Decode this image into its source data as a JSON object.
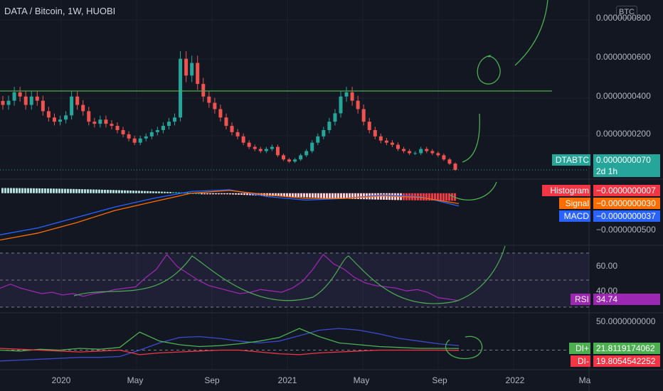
{
  "header": {
    "title": "DATA / Bitcoin, 1W, HUOBI",
    "currency_button": "BTC"
  },
  "price_axis": {
    "ticks": [
      "0.0000000800",
      "0.0000000600",
      "0.0000000400",
      "0.0000000200"
    ]
  },
  "price_label": {
    "ticker": "DTABTC",
    "value": "0.0000000070",
    "countdown": "2d 1h"
  },
  "macd_panel": {
    "histogram_label": "Histogram",
    "histogram_value": "−0.0000000007",
    "signal_label": "Signal",
    "signal_value": "−0.0000000030",
    "macd_label": "MACD",
    "macd_value": "−0.0000000037",
    "axis_tick": "−0.0000000500"
  },
  "rsi_panel": {
    "label": "RSI",
    "value": "34.74",
    "ticks": [
      "60.00",
      "40.00"
    ]
  },
  "dmi_panel": {
    "di_plus_label": "DI+",
    "di_plus_value": "21.8119174062",
    "di_minus_label": "DI-",
    "di_minus_value": "19.8054542252",
    "axis_tick": "50.0000000000"
  },
  "time_axis": {
    "ticks": [
      "2020",
      "May",
      "Sep",
      "2021",
      "May",
      "Sep",
      "2022",
      "Ma"
    ]
  },
  "colors": {
    "background": "#131722",
    "up": "#26a69a",
    "down": "#ef5350",
    "drawing": "#4caf50",
    "rsi": "#9c27b0",
    "macd": "#2962ff",
    "signal": "#ff6d00",
    "histogram": "#f23645",
    "di_plus": "#4caf50",
    "di_minus": "#f23645",
    "adx": "#3b4bd0"
  },
  "chart_data": [
    {
      "type": "candlestick",
      "title": "DATA / Bitcoin, 1W, HUOBI",
      "x_range": [
        "2019-10",
        "2021-10"
      ],
      "ylim": [
        6e-09,
        8.8e-08
      ],
      "annotation": "horizontal line ~0.0000000420",
      "series": [
        {
          "name": "close",
          "values": [
            3.8e-08,
            4e-08,
            4.4e-08,
            4.2e-08,
            3.8e-08,
            4.2e-08,
            4e-08,
            3.5e-08,
            3.2e-08,
            3e-08,
            3.1e-08,
            3.3e-08,
            4.2e-08,
            3.8e-08,
            3.5e-08,
            3e-08,
            2.9e-08,
            3.1e-08,
            2.9e-08,
            2.8e-08,
            2.6e-08,
            2.4e-08,
            2.2e-08,
            2e-08,
            2.2e-08,
            2.3e-08,
            2.5e-08,
            2.6e-08,
            2.8e-08,
            3e-08,
            3.2e-08,
            6e-08,
            5.2e-08,
            5.8e-08,
            4.8e-08,
            4.2e-08,
            3.9e-08,
            3.6e-08,
            3.2e-08,
            2.8e-08,
            2.5e-08,
            2.3e-08,
            2e-08,
            1.8e-08,
            1.7e-08,
            1.6e-08,
            1.7e-08,
            1.8e-08,
            1.4e-08,
            1.2e-08,
            1.1e-08,
            1.2e-08,
            1.4e-08,
            1.6e-08,
            2e-08,
            2.3e-08,
            2.6e-08,
            3e-08,
            3.4e-08,
            4.2e-08,
            4.4e-08,
            4e-08,
            3.6e-08,
            3e-08,
            2.6e-08,
            2.3e-08,
            2.1e-08,
            2e-08,
            1.9e-08,
            1.7e-08,
            1.6e-08,
            1.5e-08,
            1.5e-08,
            1.7e-08,
            1.6e-08,
            1.5e-08,
            1.4e-08,
            1.2e-08,
            1e-08,
            7e-09
          ]
        }
      ]
    },
    {
      "type": "line",
      "title": "MACD",
      "series": [
        {
          "name": "MACD",
          "values": [
            -1.2e-08,
            -1e-08,
            -7e-09,
            -4e-09,
            -1.5e-09,
            5e-10,
            1e-09,
            -1e-09,
            -2e-09,
            -1.5e-09,
            -5e-10,
            -1e-09,
            -3.7e-09
          ]
        },
        {
          "name": "Signal",
          "values": [
            -1.35e-08,
            -1.15e-08,
            -8.5e-09,
            -5e-09,
            -2.5e-09,
            0.0,
            8e-10,
            -5e-10,
            -1.5e-09,
            -1.5e-09,
            -8e-10,
            -1.2e-09,
            -3e-09
          ]
        },
        {
          "name": "Histogram",
          "values": [
            1.5e-09,
            1.5e-09,
            1.5e-09,
            1e-09,
            1e-09,
            5e-10,
            2e-10,
            -5e-10,
            -5e-10,
            0.0,
            3e-10,
            2e-10,
            -7e-10
          ]
        }
      ]
    },
    {
      "type": "line",
      "title": "RSI",
      "ylim": [
        30,
        70
      ],
      "series": [
        {
          "name": "RSI",
          "values": [
            44,
            47,
            44,
            42,
            40,
            41,
            39,
            40,
            38,
            40,
            41,
            43,
            44,
            45,
            52,
            58,
            69,
            60,
            55,
            50,
            46,
            44,
            42,
            40,
            41,
            43,
            42,
            41,
            44,
            49,
            58,
            69,
            62,
            58,
            52,
            48,
            46,
            45,
            44,
            42,
            43,
            41,
            37,
            36,
            34.74
          ]
        }
      ]
    },
    {
      "type": "line",
      "title": "DMI",
      "ylim": [
        0,
        55
      ],
      "series": [
        {
          "name": "DI+",
          "values": [
            20,
            19,
            21,
            20,
            22,
            21,
            23,
            40,
            30,
            26,
            24,
            25,
            27,
            30,
            34,
            44,
            35,
            28,
            26,
            24,
            23,
            22,
            22,
            21.81
          ]
        },
        {
          "name": "DI-",
          "values": [
            22,
            21,
            20,
            19,
            18,
            19,
            20,
            15,
            17,
            18,
            19,
            20,
            20,
            18,
            16,
            15,
            17,
            18,
            19,
            20,
            20,
            20,
            20,
            19.81
          ]
        },
        {
          "name": "ADX",
          "values": [
            8,
            9,
            10,
            11,
            12,
            12,
            13,
            20,
            28,
            34,
            35,
            33,
            30,
            28,
            30,
            36,
            42,
            44,
            42,
            38,
            33,
            30,
            27,
            25
          ]
        }
      ]
    }
  ]
}
